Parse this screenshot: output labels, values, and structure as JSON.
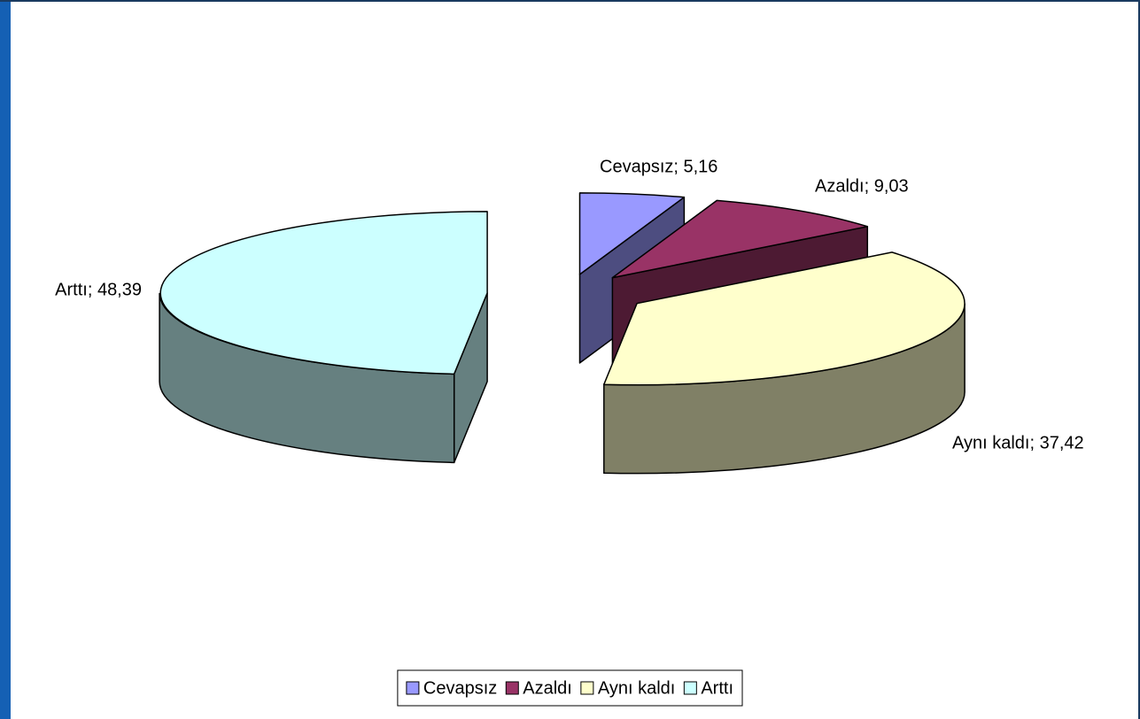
{
  "chart_data": {
    "type": "pie3d",
    "categories": [
      "Cevapsız",
      "Azaldı",
      "Aynı kaldı",
      "Arttı"
    ],
    "values": [
      5.16,
      9.03,
      37.42,
      48.39
    ],
    "value_labels": [
      "Cevapsız; 5,16",
      "Azaldı; 9,03",
      "Aynı kaldı; 37,42",
      "Arttı; 48,39"
    ],
    "colors": [
      "#9999ff",
      "#993366",
      "#ffffcc",
      "#ccffff"
    ],
    "legend": "bottom"
  }
}
